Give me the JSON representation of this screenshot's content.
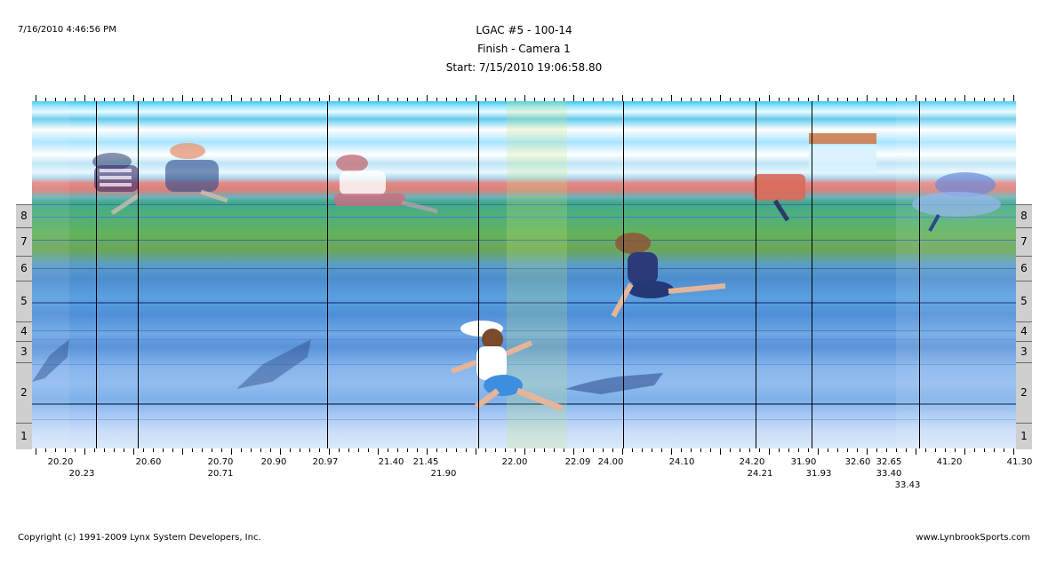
{
  "header": {
    "timestamp": "7/16/2010 4:46:56 PM",
    "title_line1": "LGAC #5 - 100-14",
    "title_line2": "Finish - Camera 1",
    "title_line3": "Start: 7/15/2010 19:06:58.80"
  },
  "footer": {
    "copyright": "Copyright (c) 1991-2009 Lynx System Developers, Inc.",
    "website": "www.LynbrookSports.com"
  },
  "lanes": [
    "8",
    "7",
    "6",
    "5",
    "4",
    "3",
    "2",
    "1"
  ],
  "time_labels": {
    "row1": [
      "20.20",
      "20.60",
      "20.70",
      "20.90",
      "20.97",
      "21.40",
      "21.45",
      "22.00",
      "22.09",
      "24.00",
      "24.10",
      "24.20",
      "31.90",
      "32.60",
      "32.65",
      "41.20",
      "41.30"
    ],
    "row2": [
      "20.23",
      "20.71",
      "21.90",
      "24.21",
      "31.93",
      "33.40"
    ],
    "row3": [
      "33.43"
    ]
  },
  "colors": {
    "track_red": "#e28a8a",
    "infield_green": "#64b25a",
    "lane_blue": "#5a92d8",
    "panel_gray": "#cfcfcf"
  }
}
